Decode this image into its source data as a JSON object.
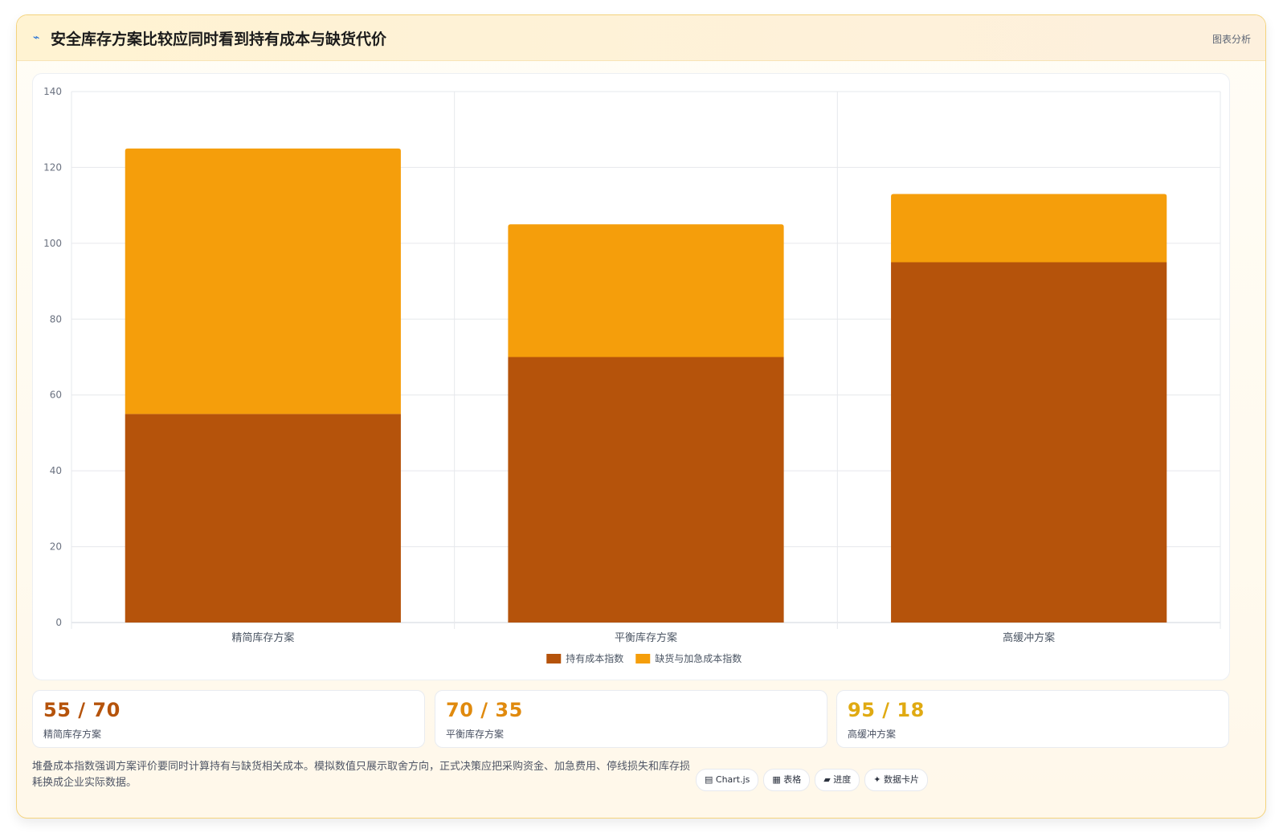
{
  "header": {
    "icon": "pulse-icon",
    "title": "安全库存方案比较应同时看到持有成本与缺货代价",
    "tag": "图表分析"
  },
  "chart_data": {
    "type": "bar",
    "stacked": true,
    "categories": [
      "精简库存方案",
      "平衡库存方案",
      "高缓冲方案"
    ],
    "series": [
      {
        "name": "持有成本指数",
        "values": [
          55,
          70,
          95
        ],
        "color": "#b5530b"
      },
      {
        "name": "缺货与加急成本指数",
        "values": [
          70,
          35,
          18
        ],
        "color": "#f59e0b"
      }
    ],
    "ylim": [
      0,
      140
    ],
    "yticks": [
      0,
      20,
      40,
      60,
      80,
      100,
      120,
      140
    ],
    "grid": true,
    "legend": "bottom"
  },
  "stats": [
    {
      "value": "55 / 70",
      "label": "精简库存方案",
      "color": "#b5530b"
    },
    {
      "value": "70 / 35",
      "label": "平衡库存方案",
      "color": "#e08a0e"
    },
    {
      "value": "95 / 18",
      "label": "高缓冲方案",
      "color": "#e0aa12"
    }
  ],
  "footnote": "堆叠成本指数强调方案评价要同时计算持有与缺货相关成本。模拟数值只展示取舍方向，正式决策应把采购资金、加急费用、停线损失和库存损耗换成企业实际数据。",
  "chips": [
    {
      "icon": "chart-icon",
      "label": "▤ Chart.js"
    },
    {
      "icon": "table-icon",
      "label": "▦ 表格"
    },
    {
      "icon": "progress-icon",
      "label": "▰ 进度"
    },
    {
      "icon": "card-icon",
      "label": "✦ 数据卡片"
    }
  ]
}
